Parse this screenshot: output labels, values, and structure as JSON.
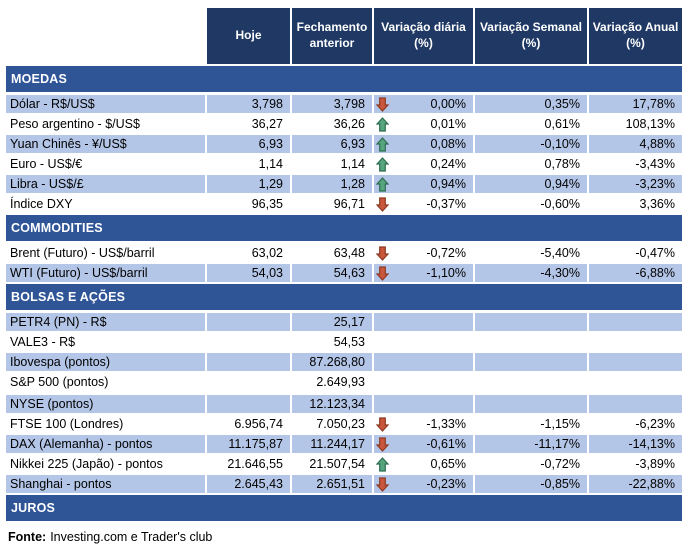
{
  "table": {
    "columns": [
      "Hoje",
      "Fechamento anterior",
      "Variação diária (%)",
      "Variação Semanal (%)",
      "Variação Anual (%)"
    ],
    "sections": [
      {
        "title": "MOEDAS",
        "zebra_start": true,
        "rows": [
          {
            "label": "Dólar - R$/US$",
            "hoje": "3,798",
            "fechamento": "3,798",
            "arrow": "down",
            "diaria": "0,00%",
            "semanal": "0,35%",
            "anual": "17,78%"
          },
          {
            "label": "Peso argentino - $/US$",
            "hoje": "36,27",
            "fechamento": "36,26",
            "arrow": "up",
            "diaria": "0,01%",
            "semanal": "0,61%",
            "anual": "108,13%"
          },
          {
            "label": "Yuan Chinês - ¥/US$",
            "hoje": "6,93",
            "fechamento": "6,93",
            "arrow": "up",
            "diaria": "0,08%",
            "semanal": "-0,10%",
            "anual": "4,88%"
          },
          {
            "label": "Euro - US$/€",
            "hoje": "1,14",
            "fechamento": "1,14",
            "arrow": "up",
            "diaria": "0,24%",
            "semanal": "0,78%",
            "anual": "-3,43%"
          },
          {
            "label": "Libra - US$/£",
            "hoje": "1,29",
            "fechamento": "1,28",
            "arrow": "up",
            "diaria": "0,94%",
            "semanal": "0,94%",
            "anual": "-3,23%"
          },
          {
            "label": "Índice DXY",
            "hoje": "96,35",
            "fechamento": "96,71",
            "arrow": "down",
            "diaria": "-0,37%",
            "semanal": "-0,60%",
            "anual": "3,36%"
          }
        ]
      },
      {
        "title": "COMMODITIES",
        "zebra_start": false,
        "rows": [
          {
            "label": "Brent (Futuro) - US$/barril",
            "hoje": "63,02",
            "fechamento": "63,48",
            "arrow": "down",
            "diaria": "-0,72%",
            "semanal": "-5,40%",
            "anual": "-0,47%"
          },
          {
            "label": "WTI (Futuro) - US$/barril",
            "hoje": "54,03",
            "fechamento": "54,63",
            "arrow": "down",
            "diaria": "-1,10%",
            "semanal": "-4,30%",
            "anual": "-6,88%"
          }
        ]
      },
      {
        "title": "BOLSAS E AÇÕES",
        "zebra_start": true,
        "rows": [
          {
            "label": "PETR4 (PN) - R$",
            "hoje": "",
            "fechamento": "25,17",
            "arrow": "",
            "diaria": "",
            "semanal": "",
            "anual": ""
          },
          {
            "label": "VALE3 - R$",
            "hoje": "",
            "fechamento": "54,53",
            "arrow": "",
            "diaria": "",
            "semanal": "",
            "anual": ""
          },
          {
            "label": "Ibovespa (pontos)",
            "hoje": "",
            "fechamento": "87.268,80",
            "arrow": "",
            "diaria": "",
            "semanal": "",
            "anual": ""
          },
          {
            "label": "S&P 500 (pontos)",
            "hoje": "",
            "fechamento": "2.649,93",
            "arrow": "",
            "diaria": "",
            "semanal": "",
            "anual": ""
          },
          {
            "label": "NYSE (pontos)",
            "hoje": "",
            "fechamento": "12.123,34",
            "arrow": "",
            "diaria": "",
            "semanal": "",
            "anual": "",
            "gap_before": true
          },
          {
            "label": "FTSE 100 (Londres)",
            "hoje": "6.956,74",
            "fechamento": "7.050,23",
            "arrow": "down",
            "diaria": "-1,33%",
            "semanal": "-1,15%",
            "anual": "-6,23%"
          },
          {
            "label": "DAX (Alemanha) - pontos",
            "hoje": "11.175,87",
            "fechamento": "11.244,17",
            "arrow": "down",
            "diaria": "-0,61%",
            "semanal": "-11,17%",
            "anual": "-14,13%"
          },
          {
            "label": "Nikkei 225 (Japão) - pontos",
            "hoje": "21.646,55",
            "fechamento": "21.507,54",
            "arrow": "up",
            "diaria": "0,65%",
            "semanal": "-0,72%",
            "anual": "-3,89%"
          },
          {
            "label": "Shanghai - pontos",
            "hoje": "2.645,43",
            "fechamento": "2.651,51",
            "arrow": "down",
            "diaria": "-0,23%",
            "semanal": "-0,85%",
            "anual": "-22,88%"
          }
        ]
      },
      {
        "title": "JUROS",
        "zebra_start": false,
        "rows": []
      }
    ]
  },
  "footer": {
    "label": "Fonte:",
    "text": "Investing.com e Trader's club"
  },
  "colors": {
    "header_bg": "#1F3864",
    "section_bg": "#2F5597",
    "row_shade": "#B4C6E7",
    "arrow_up_fill": "#56A57F",
    "arrow_up_stroke": "#2E6E52",
    "arrow_down_fill": "#C8573B",
    "arrow_down_stroke": "#8E3A24"
  }
}
